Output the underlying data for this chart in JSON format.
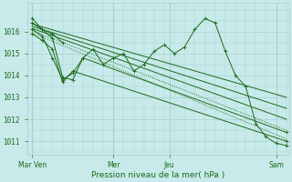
{
  "background_color": "#c8eaea",
  "grid_color": "#aacfcf",
  "line_color": "#1a6b1a",
  "xlabel": "Pression niveau de la mer( hPa )",
  "xlabel_color": "#1a6b1a",
  "xtick_labels": [
    "Mar Ven",
    "Mer",
    "Jeu",
    "Sam"
  ],
  "ylim": [
    1010.4,
    1017.3
  ],
  "ytick_values": [
    1011,
    1012,
    1013,
    1014,
    1015,
    1016
  ],
  "figsize": [
    3.2,
    2.0
  ],
  "dpi": 100,
  "series": [
    {
      "x": [
        0,
        4,
        8,
        12,
        16,
        20,
        24,
        28,
        32,
        36,
        40,
        44,
        48,
        52,
        56,
        60,
        64,
        68,
        72,
        76,
        80,
        84,
        88,
        92,
        96,
        100
      ],
      "y": [
        1016.6,
        1016.1,
        1015.7,
        1013.9,
        1013.8,
        1014.8,
        1015.2,
        1014.5,
        1014.8,
        1015.0,
        1014.2,
        1014.5,
        1015.1,
        1015.4,
        1015.0,
        1015.3,
        1016.1,
        1016.6,
        1016.4,
        1015.1,
        1014.0,
        1013.5,
        1011.8,
        1011.2,
        1010.9,
        1010.8
      ],
      "linestyle": "-",
      "marker": "+"
    },
    {
      "x": [
        0,
        100
      ],
      "y": [
        1015.95,
        1011.1
      ],
      "linestyle": ":",
      "marker": null
    },
    {
      "x": [
        0,
        100
      ],
      "y": [
        1016.05,
        1011.5
      ],
      "linestyle": ":",
      "marker": null
    },
    {
      "x": [
        0,
        100
      ],
      "y": [
        1016.15,
        1012.0
      ],
      "linestyle": "-",
      "marker": null
    },
    {
      "x": [
        0,
        100
      ],
      "y": [
        1016.25,
        1012.5
      ],
      "linestyle": "-",
      "marker": null
    },
    {
      "x": [
        0,
        100
      ],
      "y": [
        1016.35,
        1013.0
      ],
      "linestyle": "-",
      "marker": null
    },
    {
      "x": [
        0,
        4,
        8,
        12,
        16,
        20,
        100
      ],
      "y": [
        1016.1,
        1015.8,
        1014.8,
        1013.8,
        1014.1,
        1014.8,
        1011.4
      ],
      "linestyle": "-",
      "marker": "+"
    },
    {
      "x": [
        0,
        4,
        8,
        12,
        16,
        100
      ],
      "y": [
        1015.9,
        1015.6,
        1015.2,
        1013.7,
        1014.2,
        1011.0
      ],
      "linestyle": "-",
      "marker": "+"
    },
    {
      "x": [
        0,
        4,
        8,
        12
      ],
      "y": [
        1016.4,
        1016.1,
        1015.9,
        1015.5
      ],
      "linestyle": "-",
      "marker": "+"
    }
  ]
}
